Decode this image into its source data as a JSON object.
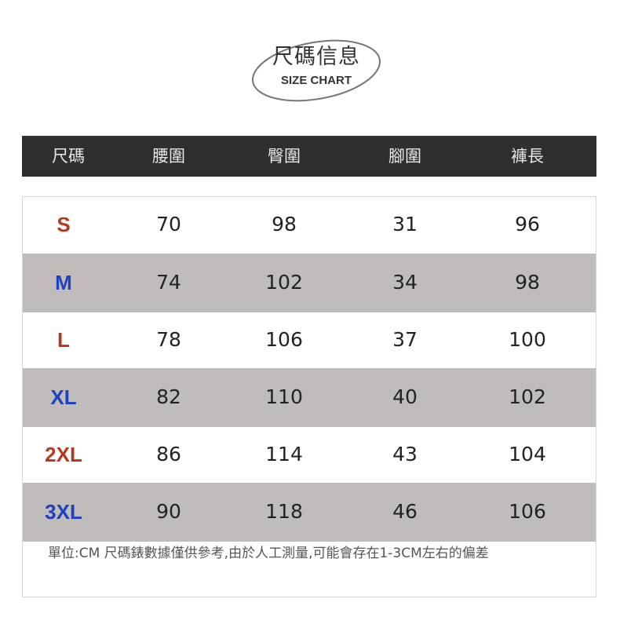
{
  "title": {
    "cn": "尺碼信息",
    "en": "SIZE CHART"
  },
  "colors": {
    "header_bg": "#2f2f2f",
    "stripe": "#c0bcbb",
    "size_red": "#b5391f",
    "size_blue": "#1f40c0"
  },
  "columns": [
    "尺碼",
    "腰圍",
    "臀圍",
    "腳圍",
    "褲長"
  ],
  "rows": [
    {
      "size": "S",
      "color": "red",
      "values": [
        "70",
        "98",
        "31",
        "96"
      ]
    },
    {
      "size": "M",
      "color": "blue",
      "values": [
        "74",
        "102",
        "34",
        "98"
      ]
    },
    {
      "size": "L",
      "color": "red",
      "values": [
        "78",
        "106",
        "37",
        "100"
      ]
    },
    {
      "size": "XL",
      "color": "blue",
      "values": [
        "82",
        "110",
        "40",
        "102"
      ]
    },
    {
      "size": "2XL",
      "color": "red",
      "values": [
        "86",
        "114",
        "43",
        "104"
      ]
    },
    {
      "size": "3XL",
      "color": "blue",
      "values": [
        "90",
        "118",
        "46",
        "106"
      ]
    }
  ],
  "note": "單位:CM 尺碼錶數據僅供參考,由於人工測量,可能會存在1-3CM左右的偏差"
}
